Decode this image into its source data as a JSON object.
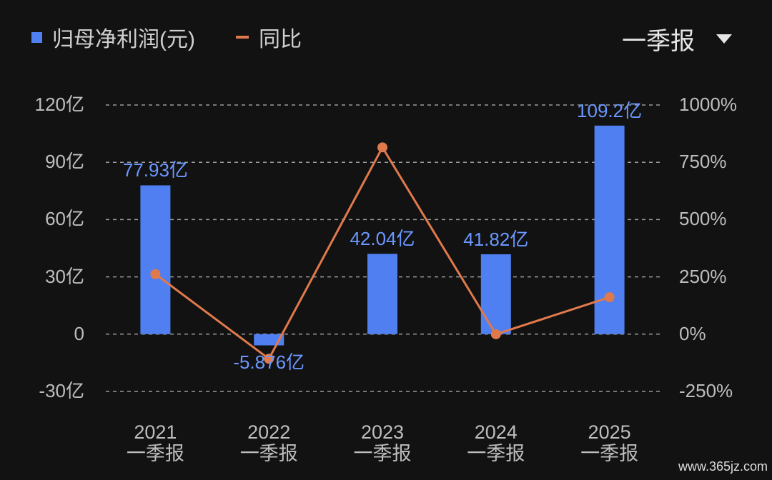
{
  "chart_data": {
    "type": "bar_line",
    "period_selector": "一季报",
    "categories": [
      "2021\n一季报",
      "2022\n一季报",
      "2023\n一季报",
      "2024\n一季报",
      "2025\n一季报"
    ],
    "series": [
      {
        "name": "归母净利润(元)",
        "color": "#4f7ff0",
        "values": [
          77.93,
          -5.876,
          42.04,
          41.82,
          109.2
        ],
        "value_labels": [
          "77.93亿",
          "-5.876亿",
          "42.04亿",
          "41.82亿",
          "109.2亿"
        ]
      },
      {
        "name": "同比",
        "color": "#e07a4c",
        "axis": "y2",
        "values": [
          262,
          -107.5,
          815,
          -0.52,
          161
        ]
      }
    ],
    "ylim": [
      -30,
      120
    ],
    "yticks": [
      {
        "value": -30,
        "label": "-30亿"
      },
      0,
      {
        "value": 30,
        "label": "30亿"
      },
      {
        "value": 60,
        "label": "60亿"
      },
      {
        "value": 90,
        "label": "90亿"
      },
      {
        "value": 120,
        "label": "120亿"
      }
    ],
    "y2lim": [
      -250,
      1000
    ],
    "y2ticks": [
      {
        "value": -250,
        "label": "-250%"
      },
      {
        "value": 0,
        "label": "0%"
      },
      {
        "value": 250,
        "label": "250%"
      },
      {
        "value": 500,
        "label": "500%"
      },
      {
        "value": 750,
        "label": "750%"
      },
      {
        "value": 1000,
        "label": "1000%"
      }
    ],
    "grid": true,
    "watermark": "www.365jz.com"
  }
}
